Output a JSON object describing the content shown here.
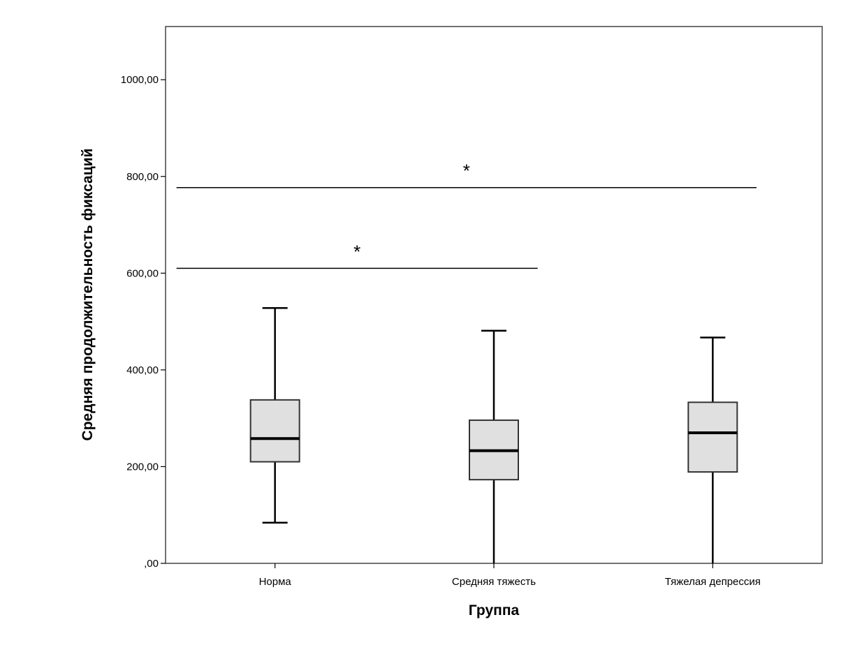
{
  "chart_data": {
    "type": "boxplot",
    "title": "",
    "xlabel": "Группа",
    "ylabel": "Средняя продолжительность фиксаций",
    "ylim": [
      0,
      1110
    ],
    "y_ticks": [
      {
        "value": 0,
        "label": ",00"
      },
      {
        "value": 200,
        "label": "200,00"
      },
      {
        "value": 400,
        "label": "400,00"
      },
      {
        "value": 600,
        "label": "600,00"
      },
      {
        "value": 800,
        "label": "800,00"
      },
      {
        "value": 1000,
        "label": "1000,00"
      }
    ],
    "grid": false,
    "box_fill": "#e0e0e0",
    "line_color": "#000000",
    "categories": [
      "Норма",
      "Средняя тяжесть",
      "Тяжелая депрессия"
    ],
    "boxes": [
      {
        "category": "Норма",
        "whisker_low": 84,
        "q1": 210,
        "median": 258,
        "q3": 338,
        "whisker_high": 528
      },
      {
        "category": "Средняя тяжесть",
        "whisker_low": 0,
        "q1": 173,
        "median": 233,
        "q3": 296,
        "whisker_high": 481
      },
      {
        "category": "Тяжелая депрессия",
        "whisker_low": 0,
        "q1": 189,
        "median": 270,
        "q3": 333,
        "whisker_high": 467
      }
    ],
    "significance": [
      {
        "from": "Норма",
        "to": "Тяжелая депрессия",
        "y": 777,
        "label": "*"
      },
      {
        "from": "Норма",
        "to": "Средняя тяжесть",
        "y": 610,
        "label": "*"
      }
    ]
  }
}
